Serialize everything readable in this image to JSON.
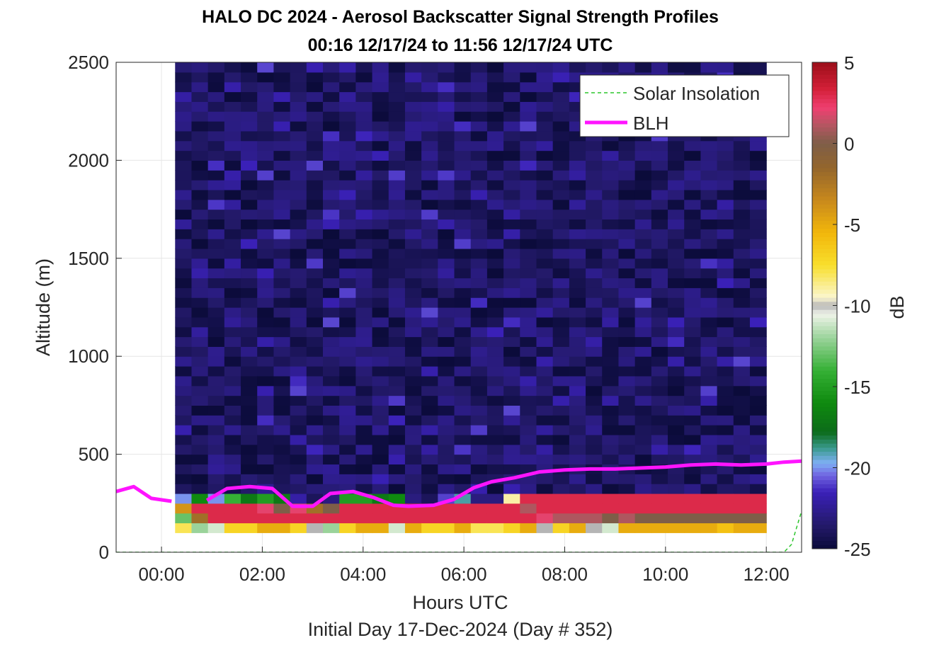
{
  "title_line1": "HALO DC 2024 - Aerosol Backscatter Signal Strength Profiles",
  "title_line2": "00:16 12/17/24 to 11:56 12/17/24  UTC",
  "xlabel": "Hours UTC",
  "footnote": "Initial Day 17-Dec-2024 (Day # 352)",
  "colorbar": {
    "label": "dB",
    "range": [
      -25,
      5
    ],
    "ticks": [
      "5",
      "0",
      "-5",
      "-10",
      "-15",
      "-20",
      "-25"
    ],
    "tick_values": [
      5,
      0,
      -5,
      -10,
      -15,
      -20,
      -25
    ],
    "stops": [
      {
        "v": -25,
        "c": "#0b0b3a"
      },
      {
        "v": -23.5,
        "c": "#241a6b"
      },
      {
        "v": -21.5,
        "c": "#3a20b8"
      },
      {
        "v": -20.5,
        "c": "#6f62e0"
      },
      {
        "v": -19.7,
        "c": "#7fb0f5"
      },
      {
        "v": -18.8,
        "c": "#3a9a8e"
      },
      {
        "v": -17.8,
        "c": "#0c6b1a"
      },
      {
        "v": -16,
        "c": "#0f8a0f"
      },
      {
        "v": -14,
        "c": "#35b035"
      },
      {
        "v": -12,
        "c": "#9ad39a"
      },
      {
        "v": -10.5,
        "c": "#f0f4ea"
      },
      {
        "v": -10,
        "c": "#b5b5b5"
      },
      {
        "v": -9.5,
        "c": "#fbf6cf"
      },
      {
        "v": -7.5,
        "c": "#f8de2c"
      },
      {
        "v": -5.5,
        "c": "#f2b70b"
      },
      {
        "v": -3.5,
        "c": "#c8891c"
      },
      {
        "v": -1.5,
        "c": "#94662c"
      },
      {
        "v": 0,
        "c": "#7e5e48"
      },
      {
        "v": 1.2,
        "c": "#b85563"
      },
      {
        "v": 2.2,
        "c": "#ef3f70"
      },
      {
        "v": 3.4,
        "c": "#d21f37"
      },
      {
        "v": 5,
        "c": "#9c0f1a"
      }
    ]
  },
  "legend": {
    "items": [
      {
        "label": "Solar Insolation",
        "color": "#2cc52c",
        "style": "dashed"
      },
      {
        "label": "BLH",
        "color": "#ff14ff",
        "style": "solid"
      }
    ]
  },
  "chart_data": {
    "type": "heatmap",
    "title": "HALO DC 2024 - Aerosol Backscatter Signal Strength Profiles",
    "subtitle": "00:16 12/17/24 to 11:56 12/17/24  UTC",
    "xlabel": "Hours UTC",
    "ylabel": "Altitude (m)",
    "xlim": [
      -0.9,
      12.7
    ],
    "ylim": [
      0,
      2500
    ],
    "x_ticks": [
      0,
      2,
      4,
      6,
      8,
      10,
      12
    ],
    "x_tick_labels": [
      "00:00",
      "02:00",
      "04:00",
      "06:00",
      "08:00",
      "10:00",
      "12:00"
    ],
    "y_ticks": [
      0,
      500,
      1000,
      1500,
      2000,
      2500
    ],
    "y_tick_labels": [
      "0",
      "500",
      "1000",
      "1500",
      "2000",
      "2500"
    ],
    "grid": true,
    "legend_position": "top-right",
    "colorbar_label": "dB",
    "heatmap": {
      "x_start": 0.27,
      "x_end": 12.0,
      "column_width_hours": 0.333,
      "y_start": 100,
      "y_end": 2500,
      "row_height_m": 50,
      "note": "columns of ~20 min, rows of 50 m; values in dB",
      "low_profile_by_column": [
        [
          -8,
          -13,
          -4,
          -20
        ],
        [
          -12,
          -2,
          3,
          -16
        ],
        [
          -11,
          3,
          3,
          -20
        ],
        [
          -7,
          3,
          3,
          -14
        ],
        [
          -7,
          3,
          3,
          -17
        ],
        [
          -5,
          3,
          2,
          -15
        ],
        [
          -5,
          3,
          0,
          -17
        ],
        [
          -7,
          3,
          2,
          -22
        ],
        [
          -10,
          3,
          -2,
          -24
        ],
        [
          -12,
          3,
          0,
          -23
        ],
        [
          -7,
          3,
          3,
          -15
        ],
        [
          -5,
          3,
          3,
          -15
        ],
        [
          -5,
          3,
          3,
          -17
        ],
        [
          -11,
          3,
          3,
          -16
        ],
        [
          -5,
          3,
          3,
          -23
        ],
        [
          -7,
          3,
          3,
          -24
        ],
        [
          -7,
          3,
          3,
          -21
        ],
        [
          -5,
          3,
          3,
          -19
        ],
        [
          -8,
          3,
          3,
          -23
        ],
        [
          -8,
          3,
          3,
          -23
        ],
        [
          -7,
          3,
          3,
          -9
        ],
        [
          -5,
          3,
          1,
          3
        ],
        [
          -10,
          2,
          3,
          3
        ],
        [
          -7,
          1,
          3,
          3
        ],
        [
          -5,
          1,
          3,
          3
        ],
        [
          -10,
          1,
          3,
          3
        ],
        [
          -11,
          0,
          3,
          3
        ],
        [
          -5,
          1,
          3,
          3
        ],
        [
          -5,
          0,
          3,
          3
        ],
        [
          -5,
          0,
          3,
          3
        ],
        [
          -5,
          0,
          3,
          3
        ],
        [
          -5,
          0,
          3,
          3
        ],
        [
          -5,
          0,
          3,
          3
        ],
        [
          -6,
          0,
          3,
          3
        ],
        [
          -5,
          0,
          3,
          3
        ],
        [
          -5,
          0,
          3,
          3
        ]
      ],
      "background_upper_db": -23.8
    },
    "series": [
      {
        "name": "BLH",
        "color": "#ff14ff",
        "x": [
          -0.9,
          -0.55,
          -0.2,
          0.2,
          0.55,
          0.9,
          1.3,
          1.75,
          2.2,
          2.6,
          3.0,
          3.35,
          3.8,
          4.2,
          4.6,
          4.9,
          5.4,
          5.8,
          6.2,
          6.55,
          7.0,
          7.5,
          8.0,
          8.5,
          9.0,
          9.5,
          10.0,
          10.5,
          11.0,
          11.5,
          12.0,
          12.35,
          12.7
        ],
        "y": [
          310,
          335,
          275,
          260,
          null,
          265,
          325,
          335,
          325,
          235,
          235,
          300,
          310,
          280,
          240,
          235,
          240,
          270,
          330,
          360,
          380,
          410,
          420,
          425,
          425,
          430,
          435,
          445,
          450,
          445,
          450,
          460,
          465
        ]
      },
      {
        "name": "Solar Insolation",
        "color": "#2cc52c",
        "x": [
          -0.9,
          12.35,
          12.5,
          12.7
        ],
        "y": [
          0,
          0,
          40,
          210
        ]
      }
    ]
  }
}
